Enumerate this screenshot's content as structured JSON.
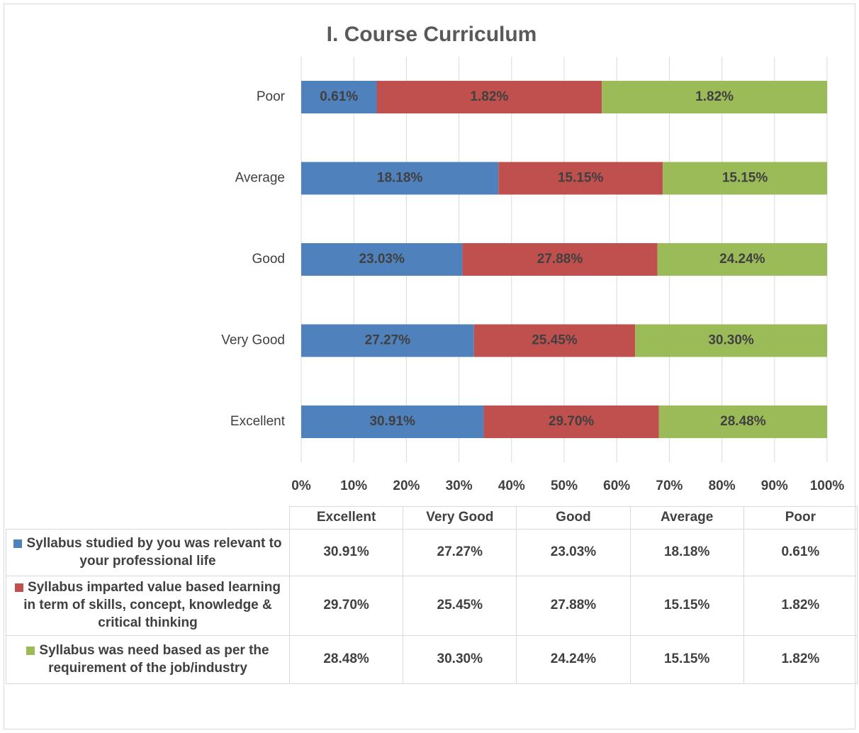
{
  "chart_data": {
    "type": "bar",
    "orientation": "horizontal",
    "stacked": "percent",
    "title": "I. Course Curriculum",
    "categories": [
      "Excellent",
      "Very Good",
      "Good",
      "Average",
      "Poor"
    ],
    "series": [
      {
        "name": "Syllabus studied by you was relevant to your professional life",
        "color": "#4f81bd",
        "values": [
          30.91,
          27.27,
          23.03,
          18.18,
          0.61
        ],
        "value_labels": [
          "30.91%",
          "27.27%",
          "23.03%",
          "18.18%",
          "0.61%"
        ]
      },
      {
        "name": "Syllabus imparted value based learning in term of skills, concept, knowledge & critical thinking",
        "color": "#c0504d",
        "values": [
          29.7,
          25.45,
          27.88,
          15.15,
          1.82
        ],
        "value_labels": [
          "29.70%",
          "25.45%",
          "27.88%",
          "15.15%",
          "1.82%"
        ]
      },
      {
        "name": "Syllabus was need based as per the requirement of the job/industry",
        "color": "#9bbb59",
        "values": [
          28.48,
          30.3,
          24.24,
          15.15,
          1.82
        ],
        "value_labels": [
          "28.48%",
          "30.30%",
          "24.24%",
          "15.15%",
          "1.82%"
        ]
      }
    ],
    "xlim": [
      0,
      100
    ],
    "xticks": [
      {
        "value": 0,
        "label": "0%"
      },
      {
        "value": 10,
        "label": "10%"
      },
      {
        "value": 20,
        "label": "20%"
      },
      {
        "value": 30,
        "label": "30%"
      },
      {
        "value": 40,
        "label": "40%"
      },
      {
        "value": 50,
        "label": "50%"
      },
      {
        "value": 60,
        "label": "60%"
      },
      {
        "value": 70,
        "label": "70%"
      },
      {
        "value": 80,
        "label": "80%"
      },
      {
        "value": 90,
        "label": "90%"
      },
      {
        "value": 100,
        "label": "100%"
      }
    ],
    "grid": true,
    "legend": "table"
  }
}
